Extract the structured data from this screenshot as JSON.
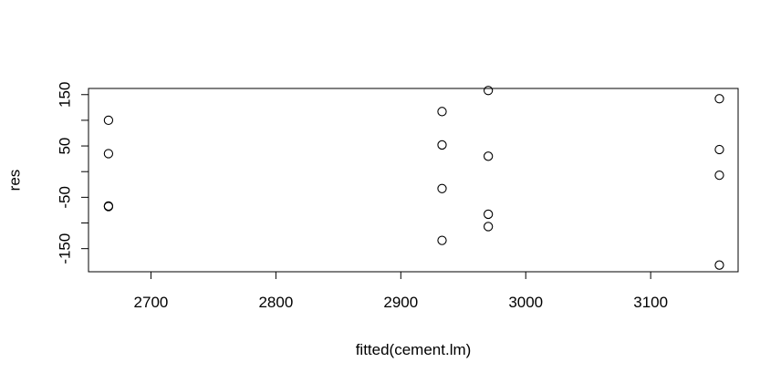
{
  "chart_data": {
    "type": "scatter",
    "title": "",
    "xlabel": "fitted(cement.lm)",
    "ylabel": "res",
    "xlim": [
      2650,
      3170
    ],
    "ylim": [
      -195,
      162
    ],
    "xticks": [
      2700,
      2800,
      2900,
      3000,
      3100
    ],
    "yticks": [
      -150,
      -50,
      50,
      150
    ],
    "yminorticks": [
      -100,
      0,
      100
    ],
    "grid": false,
    "legend": "none",
    "marker": "open-circle",
    "points": [
      {
        "x": 2666,
        "y": 100
      },
      {
        "x": 2666,
        "y": 35
      },
      {
        "x": 2666,
        "y": -67
      },
      {
        "x": 2666,
        "y": -68
      },
      {
        "x": 2933,
        "y": 117
      },
      {
        "x": 2933,
        "y": 52
      },
      {
        "x": 2933,
        "y": -33
      },
      {
        "x": 2933,
        "y": -134
      },
      {
        "x": 2970,
        "y": 158
      },
      {
        "x": 2970,
        "y": 30
      },
      {
        "x": 2970,
        "y": -83
      },
      {
        "x": 2970,
        "y": -107
      },
      {
        "x": 3155,
        "y": 142
      },
      {
        "x": 3155,
        "y": 43
      },
      {
        "x": 3155,
        "y": -7
      },
      {
        "x": 3155,
        "y": -182
      }
    ]
  }
}
